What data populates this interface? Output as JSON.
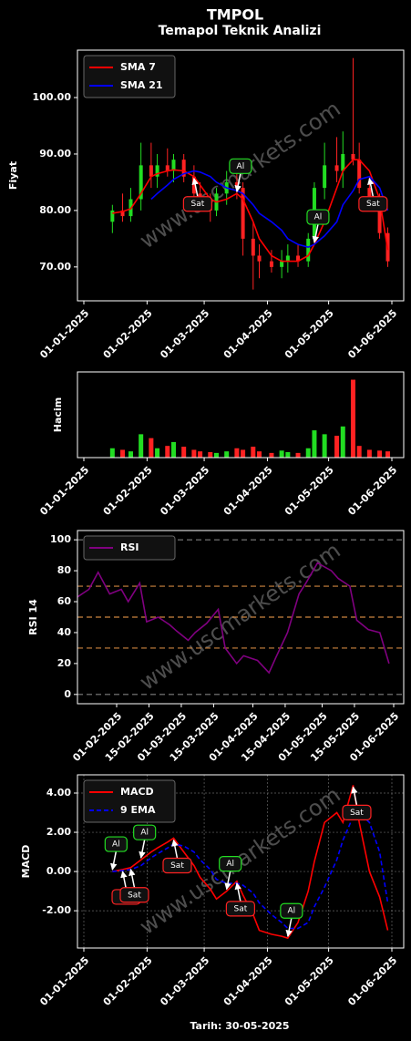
{
  "chart_data": [
    {
      "type": "candlestick",
      "title": "TMPOL",
      "subtitle": "Temapol Teknik Analizi",
      "y_label": "Fiyat",
      "watermark": "www.uscmarkets.com",
      "x": [
        "15-01-2025",
        "20-01-2025",
        "24-01-2025",
        "29-01-2025",
        "03-02-2025",
        "06-02-2025",
        "11-02-2025",
        "14-02-2025",
        "19-02-2025",
        "24-02-2025",
        "27-02-2025",
        "04-03-2025",
        "07-03-2025",
        "12-03-2025",
        "17-03-2025",
        "20-03-2025",
        "25-03-2025",
        "28-03-2025",
        "03-04-2025",
        "08-04-2025",
        "11-04-2025",
        "16-04-2025",
        "21-04-2025",
        "24-04-2025",
        "29-04-2025",
        "05-05-2025",
        "08-05-2025",
        "13-05-2025",
        "16-05-2025",
        "21-05-2025",
        "26-05-2025",
        "30-05-2025"
      ],
      "open": [
        78,
        80,
        79,
        82,
        88,
        86,
        88,
        87,
        89,
        86,
        83,
        81,
        80,
        83,
        85,
        84,
        75,
        72,
        71,
        70,
        71,
        72,
        71,
        75,
        84,
        88,
        87,
        90,
        89,
        84,
        82,
        76
      ],
      "high": [
        81,
        83,
        84,
        92,
        92,
        90,
        91,
        90,
        90,
        88,
        85,
        83,
        84,
        87,
        87,
        85,
        78,
        74,
        73,
        73,
        74,
        74,
        76,
        85,
        92,
        93,
        94,
        107,
        92,
        86,
        83,
        77
      ],
      "low": [
        76,
        78,
        78,
        80,
        84,
        84,
        86,
        85,
        85,
        82,
        80,
        78,
        79,
        81,
        82,
        72,
        66,
        68,
        69,
        68,
        69,
        70,
        70,
        74,
        82,
        85,
        84,
        88,
        83,
        80,
        75,
        70
      ],
      "close": [
        80,
        79,
        82,
        88,
        86,
        88,
        87,
        89,
        86,
        83,
        81,
        80,
        83,
        85,
        84,
        75,
        72,
        71,
        70,
        71,
        72,
        71,
        75,
        84,
        88,
        87,
        90,
        89,
        84,
        82,
        76,
        71
      ],
      "up_color": "#22dd22",
      "down_color": "#ff2222",
      "series": [
        {
          "name": "SMA 7",
          "color": "#ff0000",
          "values": [
            79.5,
            79.8,
            80.3,
            83,
            86,
            86.5,
            87,
            87.2,
            87,
            86,
            84.5,
            82,
            81.5,
            82,
            83,
            82,
            78,
            75,
            72,
            71,
            71,
            71,
            72,
            74,
            78,
            84,
            87,
            89,
            89,
            87,
            82,
            73
          ]
        },
        {
          "name": "SMA 21",
          "color": "#0000ff",
          "values": [
            null,
            null,
            null,
            null,
            82,
            83,
            84.5,
            85.5,
            86.5,
            87,
            86.8,
            86,
            85,
            84,
            83.5,
            83,
            81,
            79.5,
            78,
            76.5,
            75,
            74,
            73.5,
            74,
            75.5,
            78,
            81,
            83.5,
            85.5,
            86,
            84,
            80
          ]
        }
      ],
      "ylim": [
        64,
        108.4
      ],
      "yticks": [
        {
          "value": 70,
          "label": "70.00"
        },
        {
          "value": 80,
          "label": "80.00"
        },
        {
          "value": 90,
          "label": "90.00"
        },
        {
          "value": 100,
          "label": "100.00"
        }
      ],
      "xticks": [
        "01-01-2025",
        "01-02-2025",
        "01-03-2025",
        "01-04-2025",
        "01-05-2025",
        "01-06-2025"
      ],
      "legend": "upper left",
      "annotations": [
        {
          "text": "Sat",
          "x": "24-02-2025",
          "y": 86,
          "placement": "below",
          "color": "#ff2222"
        },
        {
          "text": "Al",
          "x": "17-03-2025",
          "y": 83,
          "placement": "above",
          "color": "#22dd22"
        },
        {
          "text": "Al",
          "x": "24-04-2025",
          "y": 74,
          "placement": "above",
          "color": "#22dd22"
        },
        {
          "text": "Sat",
          "x": "21-05-2025",
          "y": 86,
          "placement": "below",
          "color": "#ff2222"
        }
      ]
    },
    {
      "type": "bar",
      "y_label": "Hacim",
      "x": [
        "15-01-2025",
        "20-01-2025",
        "24-01-2025",
        "29-01-2025",
        "03-02-2025",
        "06-02-2025",
        "11-02-2025",
        "14-02-2025",
        "19-02-2025",
        "24-02-2025",
        "27-02-2025",
        "04-03-2025",
        "07-03-2025",
        "12-03-2025",
        "17-03-2025",
        "20-03-2025",
        "25-03-2025",
        "28-03-2025",
        "03-04-2025",
        "08-04-2025",
        "11-04-2025",
        "16-04-2025",
        "21-04-2025",
        "24-04-2025",
        "29-04-2025",
        "05-05-2025",
        "08-05-2025",
        "13-05-2025",
        "16-05-2025",
        "21-05-2025",
        "26-05-2025",
        "30-05-2025"
      ],
      "values": [
        12,
        10,
        8,
        30,
        25,
        12,
        15,
        20,
        14,
        10,
        8,
        7,
        6,
        8,
        12,
        10,
        14,
        8,
        6,
        9,
        7,
        6,
        12,
        35,
        30,
        28,
        40,
        100,
        15,
        10,
        9,
        8
      ],
      "ylim": [
        0,
        110
      ],
      "xticks": [
        "01-01-2025",
        "01-02-2025",
        "01-03-2025",
        "01-04-2025",
        "01-05-2025",
        "01-06-2025"
      ]
    },
    {
      "type": "line",
      "y_label": "RSI 14",
      "watermark": "www.uscmarkets.com",
      "x": [
        "15-01-2025",
        "20-01-2025",
        "24-01-2025",
        "29-01-2025",
        "03-02-2025",
        "06-02-2025",
        "11-02-2025",
        "14-02-2025",
        "19-02-2025",
        "24-02-2025",
        "27-02-2025",
        "04-03-2025",
        "07-03-2025",
        "12-03-2025",
        "17-03-2025",
        "20-03-2025",
        "25-03-2025",
        "28-03-2025",
        "03-04-2025",
        "08-04-2025",
        "11-04-2025",
        "16-04-2025",
        "21-04-2025",
        "24-04-2025",
        "29-04-2025",
        "05-05-2025",
        "08-05-2025",
        "13-05-2025",
        "16-05-2025",
        "21-05-2025",
        "26-05-2025",
        "30-05-2025"
      ],
      "series": [
        {
          "name": "RSI",
          "color": "#800080",
          "values": [
            63,
            68,
            79,
            65,
            68,
            60,
            72,
            47,
            50,
            45,
            41,
            35,
            40,
            46,
            55,
            30,
            20,
            25,
            22,
            14,
            24,
            40,
            65,
            72,
            85,
            80,
            75,
            70,
            48,
            42,
            40,
            20
          ]
        }
      ],
      "ylim": [
        -6,
        106
      ],
      "yticks": [
        0,
        20,
        40,
        60,
        80,
        100
      ],
      "hlines": [
        {
          "value": 0,
          "color": "#808080"
        },
        {
          "value": 30,
          "color": "#cd853f"
        },
        {
          "value": 50,
          "color": "#cd853f"
        },
        {
          "value": 70,
          "color": "#cd853f"
        },
        {
          "value": 100,
          "color": "#808080"
        }
      ],
      "xticks": [
        "01-02-2025",
        "15-02-2025",
        "01-03-2025",
        "15-03-2025",
        "01-04-2025",
        "15-04-2025",
        "01-05-2025",
        "15-05-2025",
        "01-06-2025"
      ],
      "legend": "upper left"
    },
    {
      "type": "line",
      "y_label": "MACD",
      "x_label": "Tarih: 30-05-2025",
      "watermark": "www.uscmarkets.com",
      "grid": true,
      "x": [
        "15-01-2025",
        "20-01-2025",
        "24-01-2025",
        "29-01-2025",
        "03-02-2025",
        "06-02-2025",
        "11-02-2025",
        "14-02-2025",
        "19-02-2025",
        "24-02-2025",
        "27-02-2025",
        "04-03-2025",
        "07-03-2025",
        "12-03-2025",
        "17-03-2025",
        "20-03-2025",
        "25-03-2025",
        "28-03-2025",
        "03-04-2025",
        "08-04-2025",
        "11-04-2025",
        "16-04-2025",
        "21-04-2025",
        "24-04-2025",
        "29-04-2025",
        "05-05-2025",
        "08-05-2025",
        "13-05-2025",
        "16-05-2025",
        "21-05-2025",
        "26-05-2025",
        "30-05-2025"
      ],
      "series": [
        {
          "name": "MACD",
          "color": "#ff0000",
          "values": [
            0,
            0.1,
            0.2,
            0.6,
            1.0,
            1.2,
            1.5,
            1.7,
            1.0,
            0.3,
            -0.3,
            -0.9,
            -1.4,
            -1.0,
            -0.5,
            -1.2,
            -2.2,
            -3.0,
            -3.2,
            -3.3,
            -3.4,
            -2.6,
            -1.0,
            0.5,
            2.5,
            3.0,
            2.5,
            4.4,
            2.5,
            0,
            -1.3,
            -3.0
          ]
        },
        {
          "name": "9 EMA",
          "color": "#0000ff",
          "dashed": true,
          "values": [
            0,
            0.05,
            0.1,
            0.3,
            0.7,
            0.9,
            1.2,
            1.4,
            1.3,
            1.0,
            0.6,
            0.1,
            -0.4,
            -0.6,
            -0.6,
            -0.7,
            -1.1,
            -1.6,
            -2.2,
            -2.6,
            -2.9,
            -2.9,
            -2.6,
            -1.8,
            -0.8,
            0.6,
            1.6,
            2.8,
            3.0,
            2.5,
            1.0,
            -1.6
          ]
        }
      ],
      "ylim": [
        -3.9,
        4.93
      ],
      "yticks": [
        {
          "value": -2,
          "label": "-2.00"
        },
        {
          "value": 0,
          "label": "0.00"
        },
        {
          "value": 2,
          "label": "2.00"
        },
        {
          "value": 4,
          "label": "4.00"
        }
      ],
      "xticks": [
        "01-01-2025",
        "01-02-2025",
        "01-03-2025",
        "01-04-2025",
        "01-05-2025",
        "01-06-2025"
      ],
      "legend": "upper left",
      "annotations": [
        {
          "text": "Al",
          "x": "15-01-2025",
          "y": 0,
          "placement": "above",
          "color": "#22dd22"
        },
        {
          "text": "Sat",
          "x": "20-01-2025",
          "y": 0.1,
          "placement": "below",
          "color": "#ff2222"
        },
        {
          "text": "Sat",
          "x": "24-01-2025",
          "y": 0.2,
          "placement": "below",
          "color": "#ff2222"
        },
        {
          "text": "Al",
          "x": "29-01-2025",
          "y": 0.6,
          "placement": "above",
          "color": "#22dd22"
        },
        {
          "text": "Sat",
          "x": "14-02-2025",
          "y": 1.7,
          "placement": "below",
          "color": "#ff2222"
        },
        {
          "text": "Al",
          "x": "12-03-2025",
          "y": -1.0,
          "placement": "above",
          "color": "#22dd22"
        },
        {
          "text": "Sat",
          "x": "17-03-2025",
          "y": -0.5,
          "placement": "below",
          "color": "#ff2222"
        },
        {
          "text": "Al",
          "x": "11-04-2025",
          "y": -3.4,
          "placement": "above",
          "color": "#22dd22"
        },
        {
          "text": "Sat",
          "x": "13-05-2025",
          "y": 4.4,
          "placement": "below",
          "color": "#ff2222"
        }
      ]
    }
  ]
}
